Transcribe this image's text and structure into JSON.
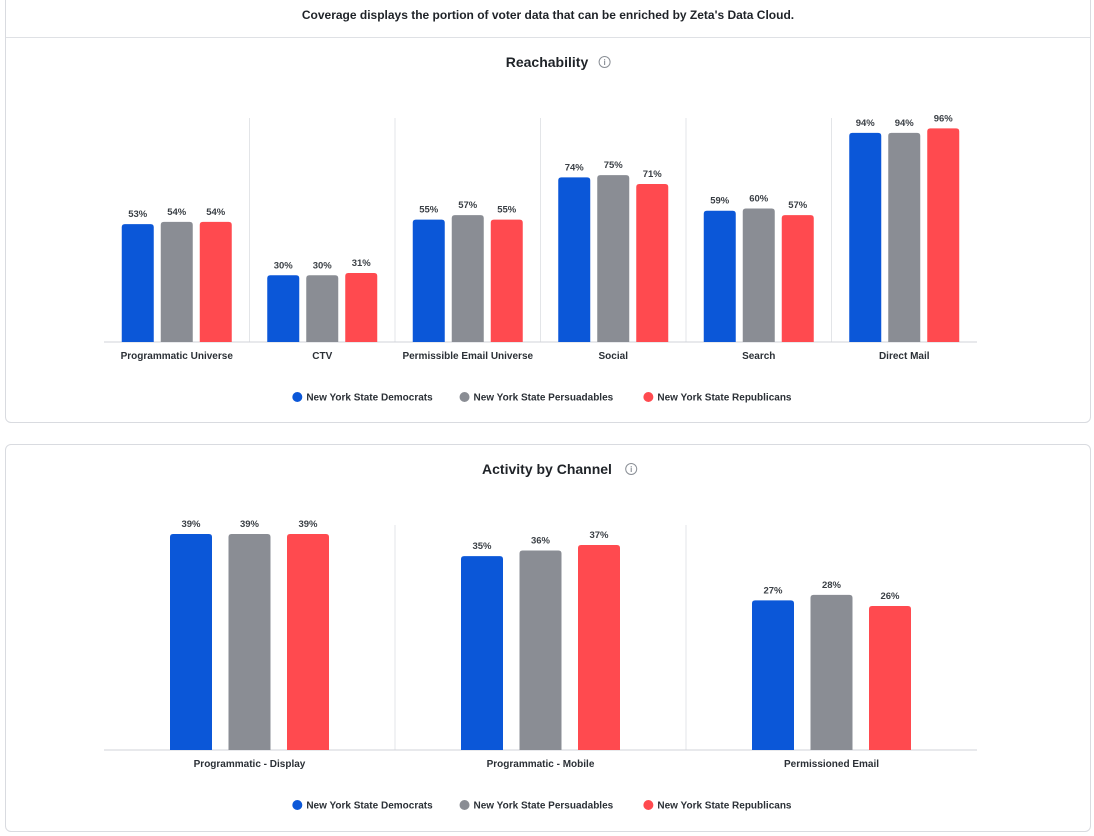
{
  "description": "Coverage displays the portion of voter data that can be enriched by Zeta's Data Cloud.",
  "colors": {
    "democrats": "#0b57d8",
    "persuadables": "#8a8d94",
    "republicans": "#ff4a4f",
    "grid": "#e3e5e8",
    "axis": "#d0d3d8"
  },
  "chart_data": [
    {
      "type": "bar",
      "title": "Reachability",
      "categories": [
        "Programmatic Universe",
        "CTV",
        "Permissible Email Universe",
        "Social",
        "Search",
        "Direct Mail"
      ],
      "series": [
        {
          "name": "New York State Democrats",
          "values": [
            53,
            30,
            55,
            74,
            59,
            94
          ]
        },
        {
          "name": "New York State Persuadables",
          "values": [
            54,
            30,
            57,
            75,
            60,
            94
          ]
        },
        {
          "name": "New York State Republicans",
          "values": [
            54,
            31,
            55,
            71,
            57,
            96
          ]
        }
      ],
      "value_format": "percent",
      "ylim": [
        0,
        100
      ],
      "legend": "bottom-center",
      "grid": false
    },
    {
      "type": "bar",
      "title": "Activity by Channel",
      "categories": [
        "Programmatic - Display",
        "Programmatic - Mobile",
        "Permissioned Email"
      ],
      "series": [
        {
          "name": "New York State Democrats",
          "values": [
            39,
            35,
            27
          ]
        },
        {
          "name": "New York State Persuadables",
          "values": [
            39,
            36,
            28
          ]
        },
        {
          "name": "New York State Republicans",
          "values": [
            39,
            37,
            26
          ]
        }
      ],
      "value_format": "percent",
      "ylim": [
        0,
        40
      ],
      "legend": "bottom-center",
      "grid": false
    }
  ]
}
